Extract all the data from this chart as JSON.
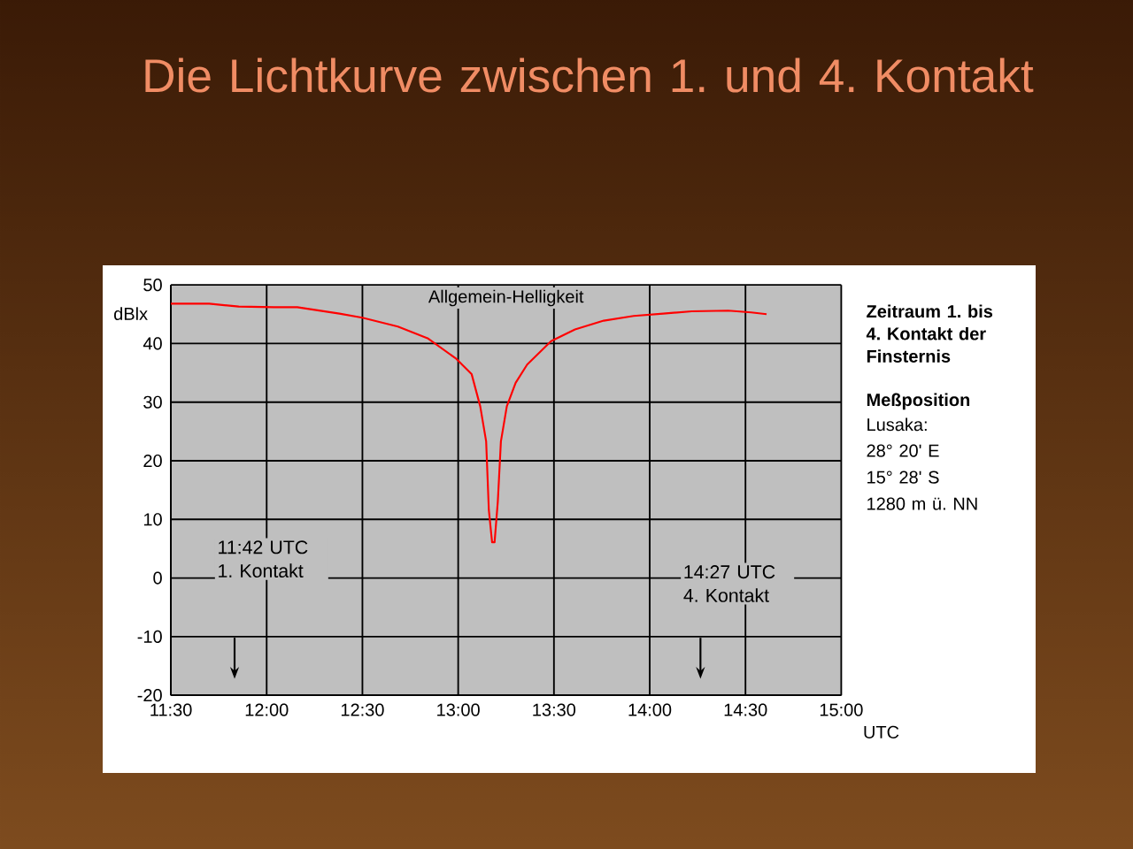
{
  "chart_data": {
    "type": "line",
    "title": "Die Lichtkurve zwischen 1. und 4. Kontakt",
    "subtitle": "Allgemein-Helligkeit",
    "ylabel": "dBlx",
    "xlabel": "UTC",
    "series": [
      {
        "color": "#ff0000",
        "x": [
          11.5,
          11.7,
          11.854,
          12.04,
          12.16,
          12.38,
          12.5,
          12.685,
          12.84,
          12.99,
          13.07,
          13.115,
          13.146,
          13.16,
          13.177,
          13.19,
          13.207,
          13.223,
          13.254,
          13.3,
          13.36,
          13.485,
          13.61,
          13.76,
          13.916,
          14.07,
          14.22,
          14.41,
          14.53,
          14.61
        ],
        "values": [
          46.8,
          46.8,
          46.3,
          46.2,
          46.2,
          45.1,
          44.4,
          42.9,
          40.9,
          37.4,
          34.8,
          29.3,
          23.3,
          11.6,
          6.1,
          6.1,
          13.1,
          23.3,
          29.3,
          33.3,
          36.4,
          40.4,
          42.4,
          43.9,
          44.7,
          45.1,
          45.5,
          45.6,
          45.3,
          45.0
        ]
      }
    ],
    "xlim": [
      11.5,
      15
    ],
    "xticks": [
      {
        "value": 11.5,
        "label": "11:30"
      },
      {
        "value": 12,
        "label": "12:00"
      },
      {
        "value": 12.5,
        "label": "12:30"
      },
      {
        "value": 13,
        "label": "13:00"
      },
      {
        "value": 13.5,
        "label": "13:30"
      },
      {
        "value": 14,
        "label": "14:00"
      },
      {
        "value": 14.5,
        "label": "14:30"
      },
      {
        "value": 15,
        "label": "15:00"
      }
    ],
    "ylim": [
      -20,
      50
    ],
    "yticks": [
      -20,
      -10,
      0,
      10,
      20,
      30,
      40,
      50
    ],
    "grid": true,
    "annotations": [
      "11:42 UTC 1. Kontakt",
      "14:27 UTC 4. Kontakt",
      "Zeitraum 1. bis 4. Kontakt der Finsternis",
      "Meßposition",
      "Lusaka:",
      "28° 20' E",
      "15° 28' S",
      "1280 m ü. NN"
    ]
  }
}
